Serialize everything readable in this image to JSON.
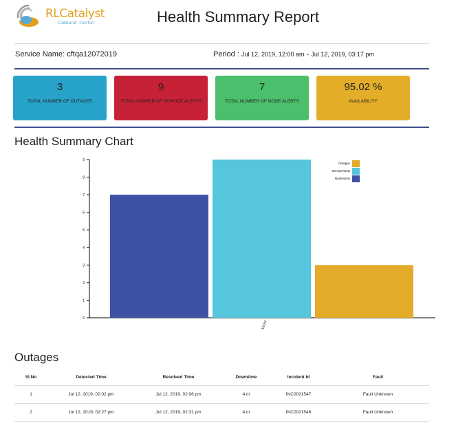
{
  "header": {
    "logo_brand": "RLCatalyst",
    "logo_sub": "Command Center",
    "title": "Health Summary Report"
  },
  "service": {
    "label": "Service Name:",
    "value": "cftqa12072019"
  },
  "period": {
    "label": "Period",
    "sep": ":",
    "start": "Jul 12, 2019, 12:00 am",
    "dash": "-",
    "end": "Jul 12, 2019, 03:17 pm"
  },
  "cards": [
    {
      "value": "3",
      "label": "TOTAL NUMBER OF OUTAGES",
      "color": "#27a2c8"
    },
    {
      "value": "9",
      "label": "TOTAL NUMBER OF SERVICE ALERTS",
      "color": "#c62136"
    },
    {
      "value": "7",
      "label": "TOTAL NUMBER OF NODE ALERTS",
      "color": "#4bbf6b"
    },
    {
      "value": "95.02 %",
      "label": "AVAILABILITY",
      "color": "#e3ad28"
    }
  ],
  "chart_section_title": "Health Summary Chart",
  "chart_data": {
    "type": "bar",
    "categories": [
      "12/Jul"
    ],
    "series": [
      {
        "name": "NodeAlerts",
        "values": [
          7
        ],
        "color": "#3f51a3"
      },
      {
        "name": "ServiceAlerts",
        "values": [
          9
        ],
        "color": "#56c6dc"
      },
      {
        "name": "Outages",
        "values": [
          3
        ],
        "color": "#e3ab27"
      }
    ],
    "legend_order": [
      "Outages",
      "ServiceAlerts",
      "NodeAlerts"
    ],
    "y_ticks": [
      "0",
      "1",
      "2",
      "3",
      "4",
      "5",
      "6",
      "7",
      "8",
      "9"
    ],
    "ylim": [
      0,
      9
    ],
    "legend": "top-right",
    "grid": false
  },
  "outages": {
    "title": "Outages",
    "columns": [
      "Sl.No",
      "Detected Time",
      "Resolved Time",
      "Downtime",
      "Incident Id",
      "Fault"
    ],
    "rows": [
      [
        "1",
        "Jul 12, 2019, 02:02 pm",
        "Jul 12, 2019, 02:06 pm",
        "4 m",
        "INC0021547",
        "Fault Unknown"
      ],
      [
        "2",
        "Jul 12, 2019, 02:27 pm",
        "Jul 12, 2019, 02:31 pm",
        "4 m",
        "INC0021548",
        "Fault Unknown"
      ]
    ]
  }
}
